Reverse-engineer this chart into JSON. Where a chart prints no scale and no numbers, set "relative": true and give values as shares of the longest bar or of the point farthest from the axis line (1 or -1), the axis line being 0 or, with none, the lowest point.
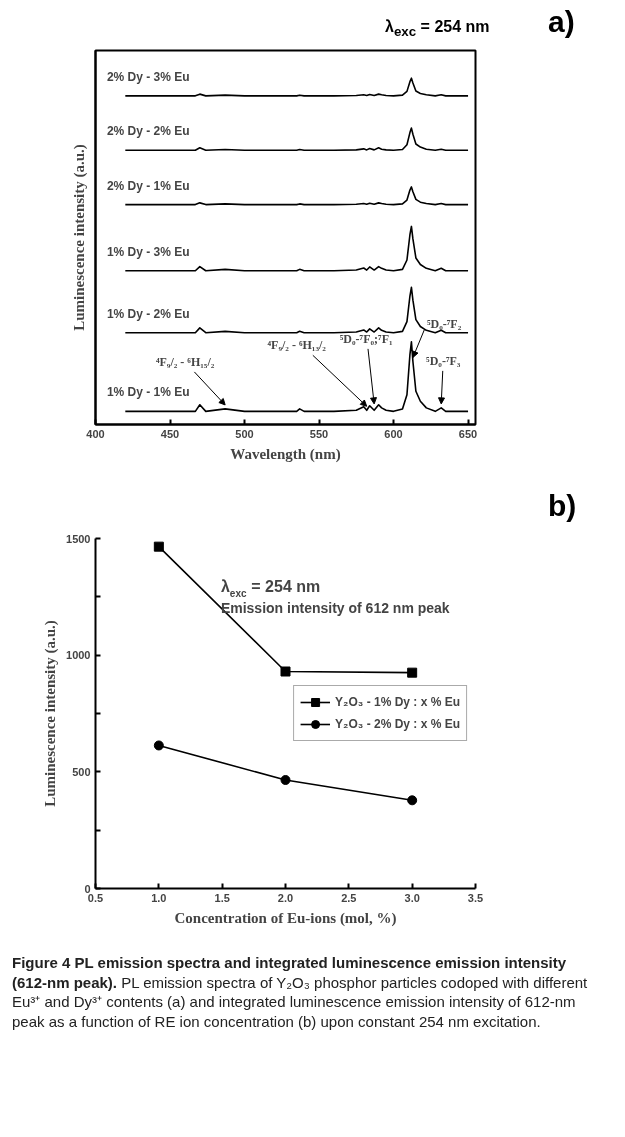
{
  "chart_data": [
    {
      "type": "line",
      "title": "λ$_{exc}$ = 254 nm",
      "xlabel": "Wavelength (nm)",
      "ylabel": "Luminescence intensity (a.u.)",
      "relative": true,
      "xlim": [
        400,
        655
      ],
      "xticks": [
        400,
        450,
        500,
        550,
        600,
        650
      ],
      "marker": "none",
      "line_style": "solid",
      "x": [
        420,
        440,
        467,
        470,
        474,
        487,
        500,
        520,
        535,
        537,
        540,
        560,
        575,
        580,
        582,
        584,
        587,
        590,
        592,
        595,
        600,
        606,
        609,
        611,
        612,
        613,
        615,
        618,
        622,
        628,
        632,
        635,
        640,
        650
      ],
      "series": [
        {
          "name": "2% Dy - 3% Eu",
          "color": "#000000",
          "values": [
            0.949,
            0.949,
            0.949,
            0.954,
            0.949,
            0.951,
            0.949,
            0.949,
            0.949,
            0.951,
            0.949,
            0.949,
            0.95,
            0.952,
            0.95,
            0.953,
            0.95,
            0.954,
            0.952,
            0.95,
            0.949,
            0.951,
            0.962,
            0.99,
            1,
            0.986,
            0.963,
            0.956,
            0.952,
            0.949,
            0.952,
            0.949,
            0.949,
            0.949
          ]
        },
        {
          "name": "2% Dy - 2% Eu",
          "color": "#000000",
          "values": [
            0.792,
            0.792,
            0.792,
            0.799,
            0.792,
            0.794,
            0.792,
            0.792,
            0.792,
            0.794,
            0.792,
            0.792,
            0.793,
            0.796,
            0.793,
            0.797,
            0.793,
            0.799,
            0.795,
            0.793,
            0.792,
            0.794,
            0.808,
            0.843,
            0.856,
            0.838,
            0.81,
            0.801,
            0.795,
            0.792,
            0.795,
            0.792,
            0.792,
            0.792
          ]
        },
        {
          "name": "2% Dy - 1% Eu",
          "color": "#000000",
          "values": [
            0.635,
            0.635,
            0.635,
            0.64,
            0.635,
            0.637,
            0.635,
            0.635,
            0.635,
            0.637,
            0.635,
            0.635,
            0.636,
            0.638,
            0.636,
            0.639,
            0.636,
            0.64,
            0.638,
            0.636,
            0.635,
            0.637,
            0.648,
            0.677,
            0.686,
            0.672,
            0.65,
            0.642,
            0.638,
            0.635,
            0.638,
            0.635,
            0.635,
            0.635
          ]
        },
        {
          "name": "1% Dy - 3% Eu",
          "color": "#000000",
          "values": [
            0.444,
            0.444,
            0.444,
            0.456,
            0.444,
            0.448,
            0.444,
            0.444,
            0.444,
            0.448,
            0.444,
            0.444,
            0.446,
            0.452,
            0.446,
            0.455,
            0.446,
            0.456,
            0.451,
            0.446,
            0.444,
            0.448,
            0.475,
            0.548,
            0.572,
            0.536,
            0.481,
            0.462,
            0.451,
            0.444,
            0.451,
            0.444,
            0.444,
            0.444
          ]
        },
        {
          "name": "1% Dy - 2% Eu",
          "color": "#000000",
          "values": [
            0.265,
            0.265,
            0.265,
            0.279,
            0.265,
            0.269,
            0.265,
            0.265,
            0.265,
            0.269,
            0.265,
            0.265,
            0.267,
            0.273,
            0.267,
            0.276,
            0.267,
            0.279,
            0.272,
            0.267,
            0.265,
            0.269,
            0.297,
            0.371,
            0.396,
            0.359,
            0.303,
            0.283,
            0.272,
            0.265,
            0.272,
            0.265,
            0.265,
            0.265
          ]
        },
        {
          "name": "1% Dy - 1% Eu",
          "color": "#000000",
          "values": [
            0.038,
            0.038,
            0.038,
            0.057,
            0.038,
            0.045,
            0.038,
            0.038,
            0.038,
            0.045,
            0.038,
            0.038,
            0.041,
            0.051,
            0.041,
            0.054,
            0.041,
            0.057,
            0.048,
            0.041,
            0.038,
            0.045,
            0.086,
            0.202,
            0.239,
            0.182,
            0.096,
            0.067,
            0.048,
            0.038,
            0.048,
            0.038,
            0.038,
            0.038
          ]
        }
      ],
      "annotations": [
        "a)",
        {
          "text": "⁴F₉/₂ - ⁶H₁₅/₂",
          "x": 487,
          "y": 0.045
        },
        {
          "text": "⁴F₉/₂ - ⁶H₁₃/₂",
          "x": 582,
          "y": 0.041
        },
        {
          "text": "⁵D₀-⁷F₀;⁷F₁",
          "x": 587,
          "y": 0.048
        },
        {
          "text": "⁵D₀-⁷F₂",
          "x": 613,
          "y": 0.182
        },
        {
          "text": "⁵D₀-⁷F₃",
          "x": 632,
          "y": 0.048
        }
      ]
    },
    {
      "type": "line",
      "xlabel": "Concentration of Eu-ions (mol, %)",
      "ylabel": "Luminescence intensity (a.u.)",
      "xlim": [
        0.5,
        3.5
      ],
      "ylim": [
        0,
        1500
      ],
      "xticks": [
        0.5,
        {
          "value": 1,
          "label": "1.0"
        },
        1.5,
        {
          "value": 2,
          "label": "2.0"
        },
        2.5,
        {
          "value": 3,
          "label": "3.0"
        },
        3.5
      ],
      "yticks": [
        0,
        {
          "value": 250,
          "label": null
        },
        500,
        {
          "value": 750,
          "label": null
        },
        1000,
        {
          "value": 1250,
          "label": null
        },
        1500
      ],
      "grid": false,
      "legend": "right",
      "line_style": "solid",
      "x": [
        1,
        2,
        3
      ],
      "series": [
        {
          "name": "Y₂O₃ - 1% Dy : x % Eu",
          "color": "#000000",
          "marker": "square",
          "values": [
            1465,
            930,
            925
          ]
        },
        {
          "name": "Y₂O₃ - 2% Dy : x % Eu",
          "color": "#000000",
          "marker": "circle",
          "values": [
            613,
            465,
            378
          ]
        }
      ],
      "annotations": [
        "λ$_{exc}$ = 254 nm",
        "Emission intensity of 612 nm peak",
        "b)",
        "Figure 4 PL emission spectra and integrated luminescence emission intensity (612-nm peak).",
        "PL emission spectra of Y₂O₃ phosphor particles codoped with different Eu³⁺ and Dy³⁺ contents (a) and integrated luminescence emission intensity of 612-nm peak as a function of RE ion concentration (b) upon constant 254 nm excitation."
      ]
    }
  ]
}
